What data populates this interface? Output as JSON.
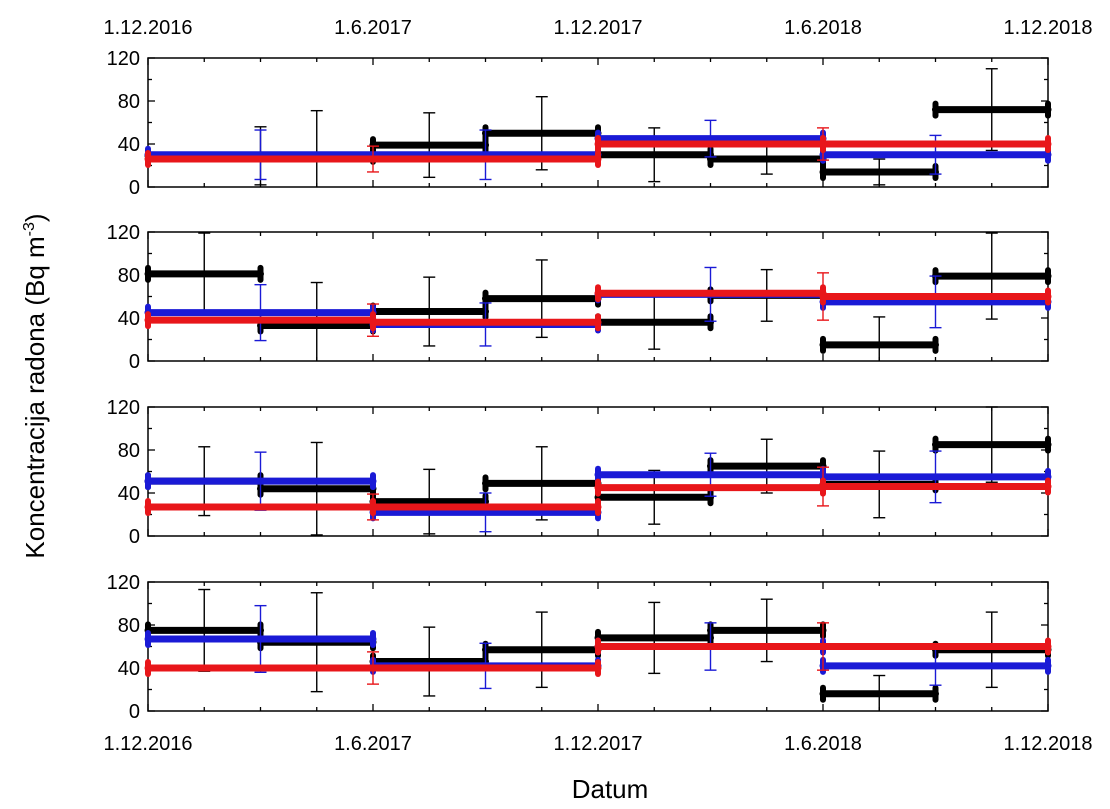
{
  "chart_data": {
    "type": "step-errorbar",
    "xlabel": "Datum",
    "ylabel": "Koncentracija radona (Bq m",
    "ylabel_sup": "-3",
    "ylabel_close": ")",
    "x_ticks": [
      "1.12.2016",
      "1.6.2017",
      "1.12.2017",
      "1.6.2018",
      "1.12.2018"
    ],
    "y_ticks": [
      "0",
      "40",
      "80",
      "120"
    ],
    "ylim": [
      0,
      120
    ],
    "x_period_starts": [
      "1.12.2016",
      "15.3.2017",
      "1.6.2017",
      "15.9.2017",
      "1.12.2017",
      "15.3.2018",
      "1.6.2018",
      "15.9.2018",
      "1.12.2018"
    ],
    "series_colors": {
      "black": "#000000",
      "blue": "#1a1ad6",
      "red": "#e8161a"
    },
    "panels": [
      {
        "series": [
          {
            "color": "black",
            "segments": [
              [
                0,
                2,
                29
              ],
              [
                2,
                3,
                39
              ],
              [
                3,
                4,
                50
              ],
              [
                4,
                5,
                30
              ],
              [
                5,
                6,
                26
              ],
              [
                6,
                7,
                14
              ],
              [
                7,
                8,
                72
              ]
            ],
            "errors": [
              [
                1,
                29,
                27
              ],
              [
                1.5,
                29,
                42
              ],
              [
                2.5,
                39,
                30
              ],
              [
                3.5,
                50,
                34
              ],
              [
                4.5,
                30,
                25
              ],
              [
                5.5,
                26,
                14
              ],
              [
                6.5,
                14,
                12
              ],
              [
                7.5,
                72,
                38
              ]
            ]
          },
          {
            "color": "blue",
            "segments": [
              [
                0,
                4,
                30
              ],
              [
                4,
                6,
                45
              ],
              [
                6,
                8,
                30
              ]
            ],
            "errors": [
              [
                1,
                30,
                23
              ],
              [
                3,
                30,
                23
              ],
              [
                5,
                45,
                17
              ],
              [
                7,
                30,
                18
              ]
            ]
          },
          {
            "color": "red",
            "segments": [
              [
                0,
                4,
                26
              ],
              [
                4,
                6,
                40
              ],
              [
                6,
                8,
                40
              ]
            ],
            "errors": [
              [
                2,
                26,
                12
              ],
              [
                6,
                40,
                15
              ]
            ]
          }
        ]
      },
      {
        "series": [
          {
            "color": "black",
            "segments": [
              [
                0,
                1,
                81
              ],
              [
                1,
                2,
                33
              ],
              [
                2,
                3,
                46
              ],
              [
                3,
                4,
                58
              ],
              [
                4,
                5,
                36
              ],
              [
                5,
                6,
                61
              ],
              [
                6,
                7,
                15
              ],
              [
                7,
                8,
                79
              ]
            ],
            "errors": [
              [
                0.5,
                81,
                38
              ],
              [
                1.5,
                33,
                40
              ],
              [
                2.5,
                46,
                32
              ],
              [
                3.5,
                58,
                36
              ],
              [
                4.5,
                36,
                25
              ],
              [
                5.5,
                61,
                24
              ],
              [
                6.5,
                15,
                26
              ],
              [
                7.5,
                79,
                40
              ]
            ]
          },
          {
            "color": "blue",
            "segments": [
              [
                0,
                2,
                45
              ],
              [
                2,
                4,
                34
              ],
              [
                4,
                6,
                62
              ],
              [
                6,
                8,
                55
              ]
            ],
            "errors": [
              [
                1,
                45,
                26
              ],
              [
                3,
                34,
                20
              ],
              [
                5,
                62,
                25
              ],
              [
                7,
                55,
                24
              ]
            ]
          },
          {
            "color": "red",
            "segments": [
              [
                0,
                2,
                38
              ],
              [
                2,
                4,
                36
              ],
              [
                4,
                6,
                63
              ],
              [
                6,
                8,
                60
              ]
            ],
            "errors": [
              [
                2,
                38,
                15
              ],
              [
                6,
                60,
                22
              ]
            ]
          }
        ]
      },
      {
        "series": [
          {
            "color": "black",
            "segments": [
              [
                0,
                1,
                51
              ],
              [
                1,
                2,
                44
              ],
              [
                2,
                3,
                32
              ],
              [
                3,
                4,
                49
              ],
              [
                4,
                5,
                36
              ],
              [
                5,
                6,
                65
              ],
              [
                6,
                7,
                48
              ],
              [
                7,
                8,
                85
              ]
            ],
            "errors": [
              [
                0.5,
                51,
                32
              ],
              [
                1.5,
                44,
                43
              ],
              [
                2.5,
                32,
                30
              ],
              [
                3.5,
                49,
                34
              ],
              [
                4.5,
                36,
                25
              ],
              [
                5.5,
                65,
                25
              ],
              [
                6.5,
                48,
                31
              ],
              [
                7.5,
                85,
                35
              ]
            ]
          },
          {
            "color": "blue",
            "segments": [
              [
                0,
                2,
                51
              ],
              [
                2,
                4,
                22
              ],
              [
                4,
                6,
                57
              ],
              [
                6,
                8,
                55
              ]
            ],
            "errors": [
              [
                1,
                51,
                27
              ],
              [
                3,
                22,
                18
              ],
              [
                5,
                57,
                20
              ],
              [
                7,
                55,
                24
              ]
            ]
          },
          {
            "color": "red",
            "segments": [
              [
                0,
                2,
                27
              ],
              [
                2,
                4,
                27
              ],
              [
                4,
                6,
                45
              ],
              [
                6,
                8,
                46
              ]
            ],
            "errors": [
              [
                2,
                27,
                12
              ],
              [
                6,
                46,
                18
              ]
            ]
          }
        ]
      },
      {
        "series": [
          {
            "color": "black",
            "segments": [
              [
                0,
                1,
                75
              ],
              [
                1,
                2,
                64
              ],
              [
                2,
                3,
                46
              ],
              [
                3,
                4,
                57
              ],
              [
                4,
                5,
                68
              ],
              [
                5,
                6,
                75
              ],
              [
                6,
                7,
                16
              ],
              [
                7,
                8,
                57
              ]
            ],
            "errors": [
              [
                0.5,
                75,
                38
              ],
              [
                1.5,
                64,
                46
              ],
              [
                2.5,
                46,
                32
              ],
              [
                3.5,
                57,
                35
              ],
              [
                4.5,
                68,
                33
              ],
              [
                5.5,
                75,
                29
              ],
              [
                6.5,
                16,
                17
              ],
              [
                7.5,
                57,
                35
              ]
            ]
          },
          {
            "color": "blue",
            "segments": [
              [
                0,
                2,
                67
              ],
              [
                2,
                4,
                42
              ],
              [
                4,
                6,
                60
              ],
              [
                6,
                8,
                42
              ]
            ],
            "errors": [
              [
                1,
                67,
                31
              ],
              [
                3,
                42,
                21
              ],
              [
                5,
                60,
                22
              ],
              [
                7,
                42,
                18
              ]
            ]
          },
          {
            "color": "red",
            "segments": [
              [
                0,
                4,
                40
              ],
              [
                4,
                8,
                60
              ]
            ],
            "errors": [
              [
                2,
                40,
                15
              ],
              [
                6,
                60,
                22
              ]
            ]
          }
        ]
      }
    ]
  }
}
